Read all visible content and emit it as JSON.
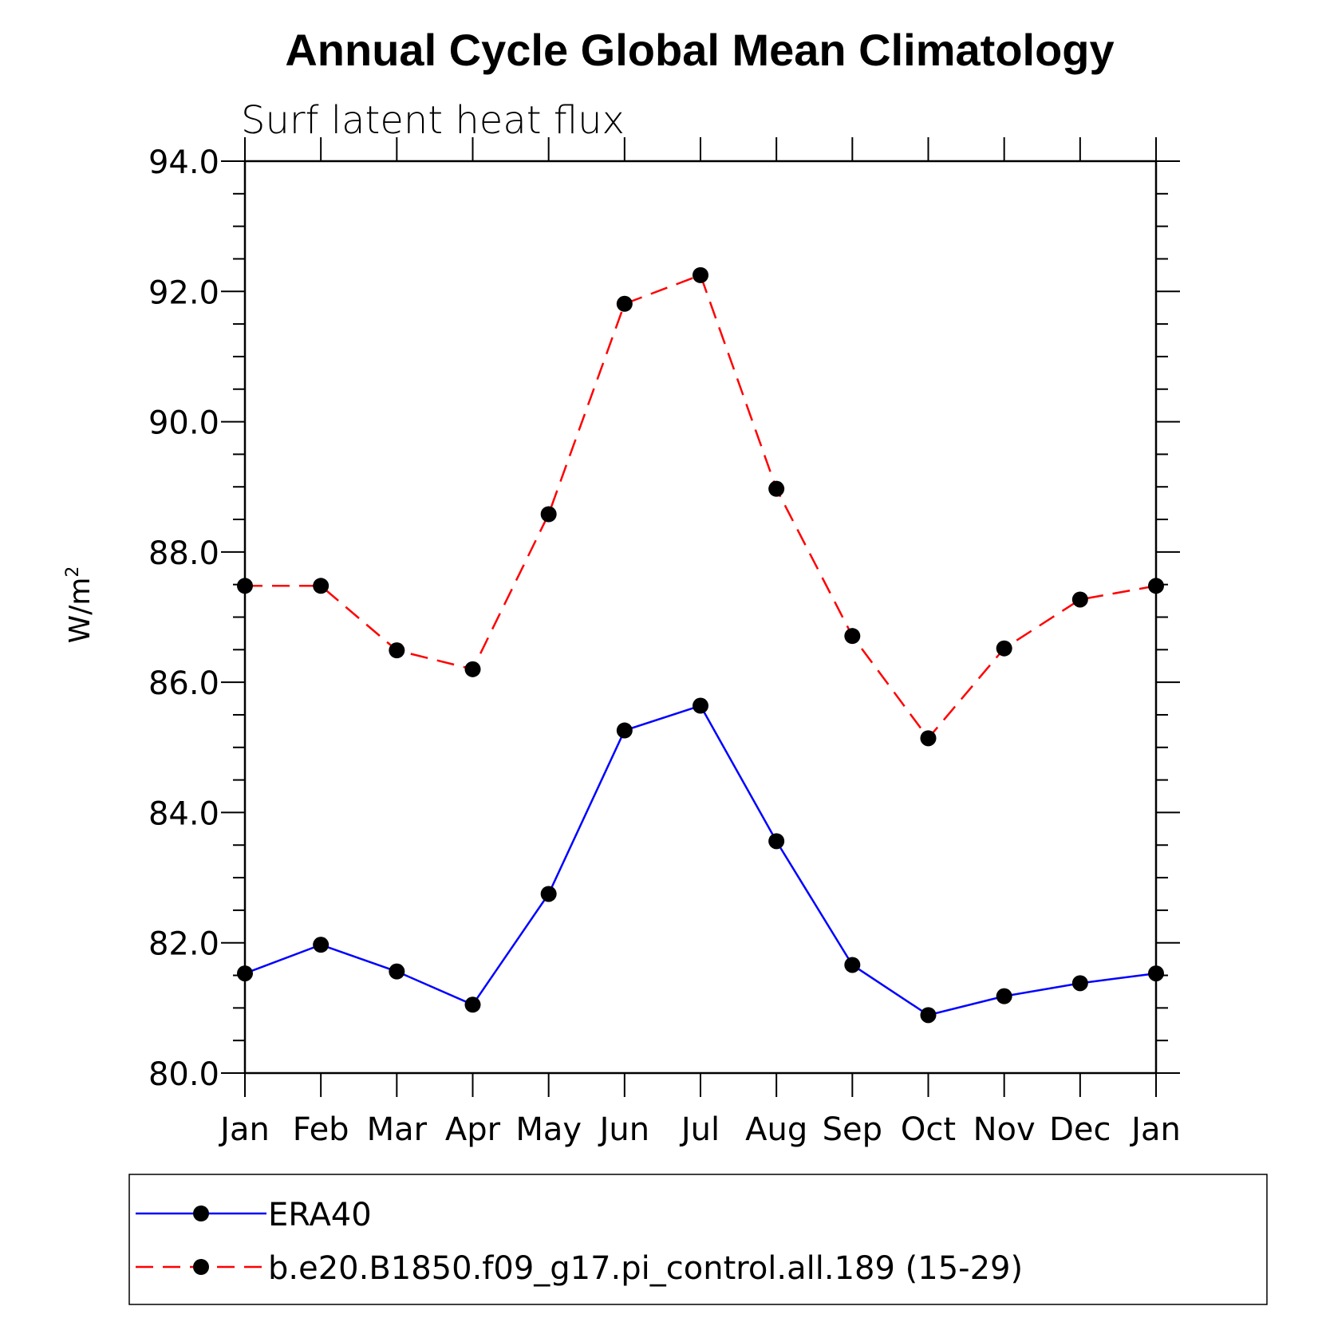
{
  "chart_data": {
    "type": "line",
    "title": "Annual Cycle Global Mean Climatology",
    "subtitle": "Surf latent heat flux",
    "ylabel": "W/m",
    "ylabel_superscript": "2",
    "xlabel": "",
    "categories": [
      "Jan",
      "Feb",
      "Mar",
      "Apr",
      "May",
      "Jun",
      "Jul",
      "Aug",
      "Sep",
      "Oct",
      "Nov",
      "Dec",
      "Jan"
    ],
    "ylim": [
      80.0,
      94.0
    ],
    "yticks": [
      "80.0",
      "82.0",
      "84.0",
      "86.0",
      "88.0",
      "90.0",
      "92.0",
      "94.0"
    ],
    "grid": false,
    "legend_position": "bottom",
    "series": [
      {
        "name": "ERA40",
        "color": "#0000ff",
        "dash": "solid",
        "marker": "filled-circle",
        "values": [
          81.53,
          81.97,
          81.56,
          81.05,
          82.75,
          85.26,
          85.64,
          83.56,
          81.66,
          80.89,
          81.18,
          81.38,
          81.53
        ]
      },
      {
        "name": "b.e20.B1850.f09_g17.pi_control.all.189 (15-29)",
        "color": "#ff0000",
        "dash": "dashed",
        "marker": "filled-circle",
        "values": [
          87.48,
          87.48,
          86.49,
          86.2,
          88.58,
          91.81,
          92.25,
          88.97,
          86.71,
          85.14,
          86.52,
          87.27,
          87.48
        ]
      }
    ]
  }
}
